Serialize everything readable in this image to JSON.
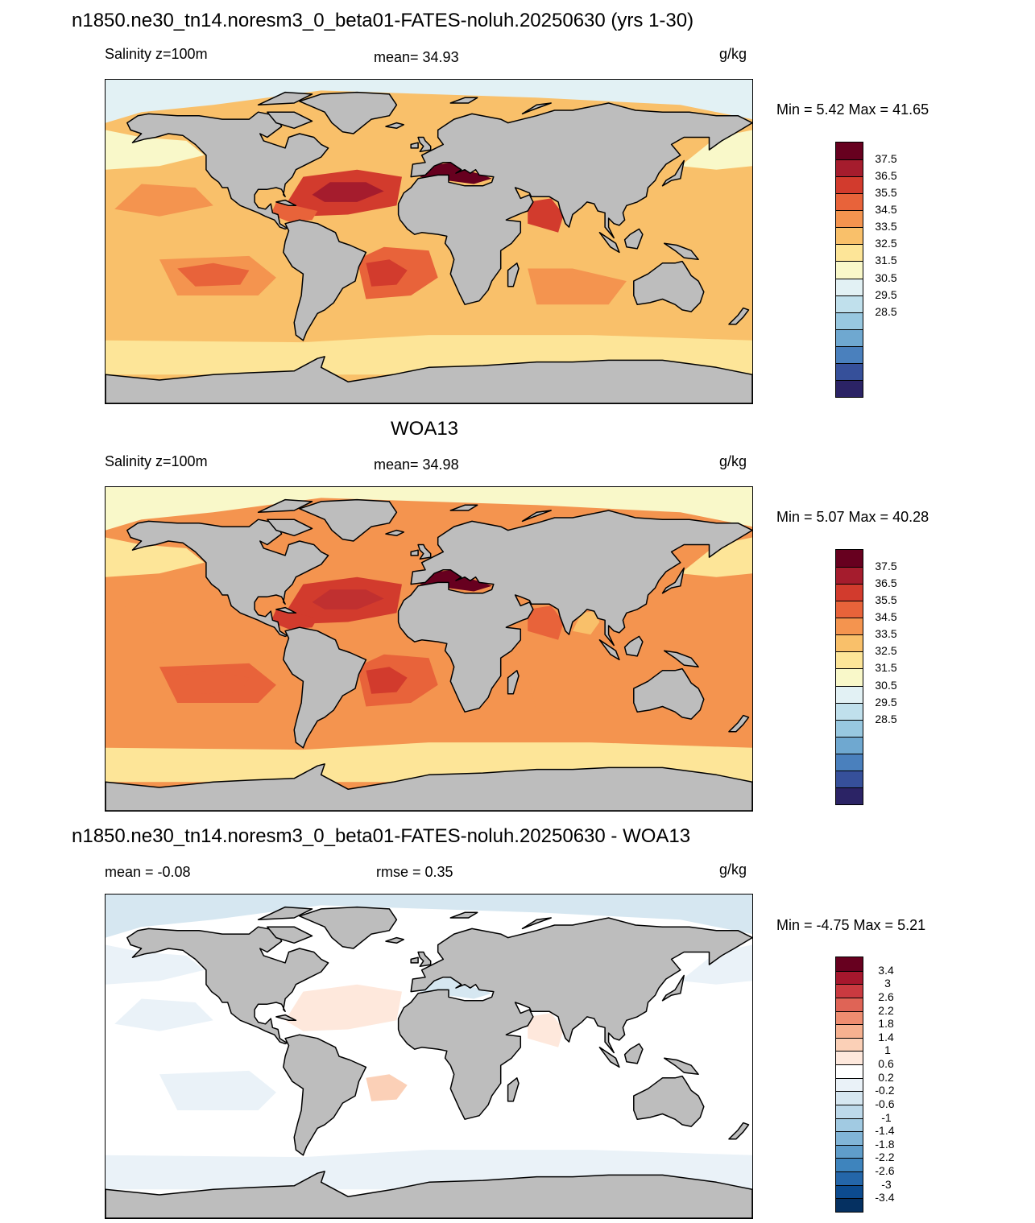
{
  "panels": [
    {
      "title": "n1850.ne30_tn14.noresm3_0_beta01-FATES-noluh.20250630 (yrs 1-30)",
      "left_label": "Salinity z=100m",
      "center_label": "mean=  34.93",
      "units": "g/kg",
      "minmax": "Min =   5.42 Max =  41.65",
      "palette": "abs",
      "variant": "model"
    },
    {
      "title": "WOA13",
      "left_label": "Salinity z=100m",
      "center_label": "mean=  34.98",
      "units": "g/kg",
      "minmax": "Min =   5.07 Max =  40.28",
      "palette": "abs",
      "variant": "obs"
    },
    {
      "title": "n1850.ne30_tn14.noresm3_0_beta01-FATES-noluh.20250630 - WOA13",
      "left_label": "mean =  -0.08",
      "center_label": "rmse =   0.35",
      "units": "g/kg",
      "minmax": "Min =  -4.75 Max =   5.21",
      "palette": "diff",
      "variant": "diff"
    }
  ],
  "colorbars": {
    "abs": {
      "labels": [
        "37.5",
        "36.5",
        "35.5",
        "34.5",
        "33.5",
        "32.5",
        "31.5",
        "30.5",
        "29.5",
        "28.5"
      ],
      "colors": [
        "#67001f",
        "#a51c2d",
        "#d23b2d",
        "#e8633a",
        "#f4944f",
        "#f9c06a",
        "#fde598",
        "#f9f8c9",
        "#e2f1f4",
        "#c0e0ec",
        "#98c8e0",
        "#6fa8d0",
        "#4a80bd",
        "#36509a",
        "#2b2365"
      ]
    },
    "diff": {
      "labels": [
        "3.4",
        "3",
        "2.6",
        "2.2",
        "1.8",
        "1.4",
        "1",
        "0.6",
        "0.2",
        "-0.2",
        "-0.6",
        "-1",
        "-1.4",
        "-1.8",
        "-2.2",
        "-2.6",
        "-3",
        "-3.4"
      ],
      "colors": [
        "#67001f",
        "#a6172d",
        "#c93a40",
        "#df6456",
        "#ee8d70",
        "#f6b190",
        "#fbd0b7",
        "#fee8dc",
        "#ffffff",
        "#eaf2f8",
        "#d6e7f1",
        "#bdd9ea",
        "#a1cae2",
        "#81b5d7",
        "#5f9dca",
        "#3e84bd",
        "#2466a9",
        "#0c4b8f",
        "#053061"
      ]
    },
    "land_color": "#bdbdbd"
  }
}
